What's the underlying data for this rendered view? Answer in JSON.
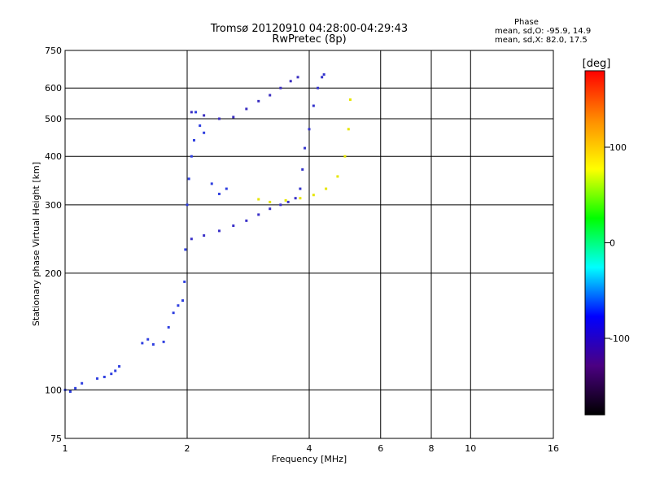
{
  "header": {
    "title_line1": "Tromsø 20120910 04:28:00-04:29:43",
    "title_line2": "RwPretec (8p)",
    "phase_title": "Phase",
    "phase_o": "mean, sd,O: -95.9, 14.9",
    "phase_x": "mean, sd,X:  82.0, 17.5"
  },
  "chart_data": {
    "type": "scatter",
    "xlabel": "Frequency [MHz]",
    "ylabel": "Stationary phase Virtual Height [km]",
    "xscale": "log",
    "yscale": "log",
    "xlim": [
      1,
      16
    ],
    "ylim": [
      75,
      750
    ],
    "x_ticks": [
      1,
      2,
      4,
      6,
      8,
      10,
      16
    ],
    "x_tick_labels": [
      "1",
      "2",
      "4",
      "6",
      "8",
      "10",
      "16"
    ],
    "y_ticks": [
      75,
      100,
      200,
      300,
      400,
      500,
      600,
      750
    ],
    "y_tick_labels": [
      "75",
      "100",
      "200",
      "300",
      "400",
      "500",
      "600",
      "750"
    ],
    "grid": true,
    "colorbar": {
      "label": "[deg]",
      "range": [
        -180,
        180
      ],
      "tick_values": [
        100,
        0,
        -100
      ],
      "tick_labels": [
        "100",
        "0",
        "-100"
      ],
      "colors": [
        "#000000",
        "#4b0082",
        "#0000ff",
        "#00ffff",
        "#00ff00",
        "#ffff00",
        "#ff8c00",
        "#ff0000"
      ]
    },
    "series": [
      {
        "phase": -100,
        "color": "#2f3fe0",
        "points": [
          [
            1.0,
            100
          ],
          [
            1.03,
            99
          ],
          [
            1.06,
            101
          ],
          [
            1.1,
            104
          ],
          [
            1.2,
            107
          ],
          [
            1.25,
            108
          ],
          [
            1.3,
            110
          ],
          [
            1.33,
            112
          ],
          [
            1.36,
            115
          ],
          [
            1.55,
            132
          ],
          [
            1.6,
            135
          ],
          [
            1.65,
            131
          ],
          [
            1.75,
            133
          ],
          [
            1.8,
            145
          ],
          [
            1.85,
            158
          ],
          [
            1.9,
            165
          ],
          [
            1.95,
            170
          ],
          [
            1.97,
            190
          ],
          [
            1.98,
            230
          ],
          [
            2.0,
            300
          ],
          [
            2.02,
            350
          ],
          [
            2.05,
            400
          ],
          [
            2.08,
            440
          ],
          [
            2.1,
            520
          ],
          [
            2.15,
            480
          ],
          [
            2.2,
            460
          ],
          [
            2.3,
            340
          ],
          [
            2.4,
            320
          ],
          [
            2.5,
            330
          ]
        ]
      },
      {
        "phase": -85,
        "color": "#3a30c8",
        "points": [
          [
            2.05,
            245
          ],
          [
            2.2,
            250
          ],
          [
            2.4,
            257
          ],
          [
            2.6,
            265
          ],
          [
            2.8,
            273
          ],
          [
            3.0,
            283
          ],
          [
            3.2,
            293
          ],
          [
            3.4,
            300
          ],
          [
            3.55,
            305
          ],
          [
            3.7,
            312
          ]
        ]
      },
      {
        "phase": -95,
        "color": "#3a2ec0",
        "points": [
          [
            2.05,
            520
          ],
          [
            2.2,
            510
          ],
          [
            2.4,
            500
          ],
          [
            2.6,
            505
          ],
          [
            2.8,
            530
          ],
          [
            3.0,
            555
          ],
          [
            3.2,
            575
          ],
          [
            3.4,
            600
          ],
          [
            3.6,
            625
          ],
          [
            3.75,
            640
          ]
        ]
      },
      {
        "phase": -90,
        "color": "#3333cc",
        "points": [
          [
            3.8,
            330
          ],
          [
            3.85,
            370
          ],
          [
            3.9,
            420
          ],
          [
            4.0,
            470
          ],
          [
            4.1,
            540
          ],
          [
            4.2,
            600
          ],
          [
            4.3,
            640
          ],
          [
            4.35,
            650
          ]
        ]
      },
      {
        "phase": 95,
        "color": "#e6e600",
        "points": [
          [
            3.0,
            310
          ],
          [
            3.2,
            305
          ],
          [
            3.5,
            308
          ],
          [
            3.8,
            312
          ],
          [
            4.1,
            318
          ],
          [
            4.4,
            330
          ],
          [
            4.7,
            355
          ],
          [
            4.9,
            400
          ],
          [
            5.0,
            470
          ],
          [
            5.05,
            560
          ]
        ]
      }
    ]
  }
}
